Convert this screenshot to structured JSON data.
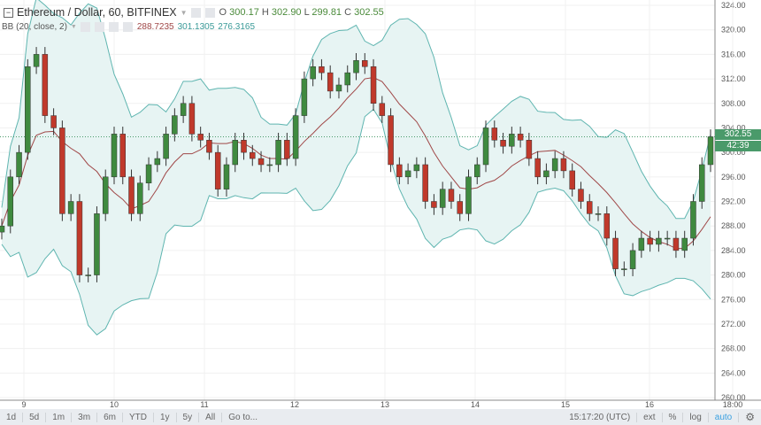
{
  "header": {
    "symbol": "Ethereum / Dollar, 60, BITFINEX",
    "o_label": "O",
    "o": "300.17",
    "h_label": "H",
    "h": "302.90",
    "l_label": "L",
    "l": "299.81",
    "c_label": "C",
    "c": "302.55"
  },
  "indicator": {
    "label": "BB (20, close, 2)",
    "middle": "288.7235",
    "upper": "301.1305",
    "lower": "276.3165"
  },
  "price_tag": "302.55",
  "countdown": "42:39",
  "toolbar": {
    "ranges": [
      "1d",
      "5d",
      "1m",
      "3m",
      "6m",
      "YTD",
      "1y",
      "5y",
      "All",
      "Go to..."
    ],
    "time": "15:17:20 (UTC)",
    "ext": "ext",
    "pct": "%",
    "log": "log",
    "auto": "auto"
  },
  "colors": {
    "up": "#3f8a3f",
    "down": "#c0392b",
    "band": "#5fb5b0",
    "fill": "#e7f4f3",
    "basis": "#a04848"
  },
  "chart_data": {
    "type": "candlestick",
    "title": "Ethereum / Dollar, 60, BITFINEX",
    "ylim": [
      260,
      324
    ],
    "yticks": [
      "260.00",
      "264.00",
      "268.00",
      "272.00",
      "276.00",
      "280.00",
      "284.00",
      "288.00",
      "292.00",
      "296.00",
      "300.00",
      "304.00",
      "308.00",
      "312.00",
      "316.00",
      "320.00",
      "324.00"
    ],
    "xticks": [
      "9",
      "10",
      "11",
      "12",
      "13",
      "14",
      "15",
      "16",
      "18:00"
    ],
    "closes": [
      288,
      296,
      300,
      314,
      316,
      306,
      304,
      290,
      292,
      280,
      280,
      290,
      296,
      303,
      296,
      290,
      295,
      298,
      299,
      303,
      306,
      308,
      303,
      302,
      300,
      294,
      298,
      302,
      300,
      299,
      298,
      298,
      302,
      299,
      306,
      312,
      314,
      313,
      310,
      311,
      313,
      315,
      314,
      308,
      306,
      298,
      296,
      297,
      298,
      292,
      291,
      294,
      292,
      290,
      296,
      298,
      304,
      302,
      301,
      303,
      302,
      299,
      296,
      297,
      299,
      297,
      294,
      292,
      290,
      290,
      286,
      281,
      281,
      284,
      286,
      285,
      286,
      286,
      284,
      286,
      292,
      298,
      302.55
    ]
  }
}
